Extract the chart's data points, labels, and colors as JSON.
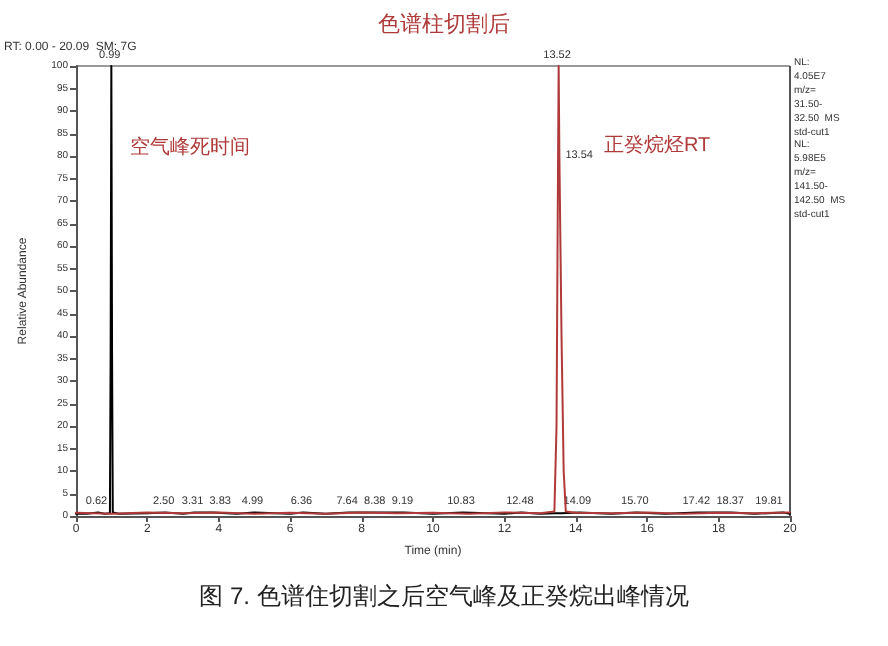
{
  "chart_data": {
    "type": "line",
    "title": "色谱柱切割后",
    "xlabel": "Time (min)",
    "ylabel": "Relative Abundance",
    "xlim": [
      0,
      20
    ],
    "xticks": [
      0,
      2,
      4,
      6,
      8,
      10,
      12,
      14,
      16,
      18,
      20
    ],
    "ylim": [
      0,
      100
    ],
    "yticks": [
      0,
      5,
      10,
      15,
      20,
      25,
      30,
      35,
      40,
      45,
      50,
      55,
      60,
      65,
      70,
      75,
      80,
      85,
      90,
      95,
      100
    ],
    "grid": false,
    "marker": "none",
    "line_style": "solid",
    "series": [
      {
        "color": "#000000",
        "x": [
          0,
          0.3,
          0.62,
          0.8,
          0.95,
          0.97,
          0.99,
          1.01,
          1.03,
          1.2,
          2,
          2.5,
          3,
          3.31,
          3.83,
          4.5,
          4.99,
          6,
          6.36,
          7,
          7.64,
          8.38,
          9.19,
          10,
          10.83,
          12,
          12.48,
          13,
          13.4,
          13.6,
          14.09,
          15,
          15.7,
          16.5,
          17.42,
          18.37,
          19,
          19.81,
          20
        ],
        "values": [
          0.5,
          0.5,
          0.8,
          0.5,
          0.6,
          36,
          100,
          36,
          0.8,
          0.5,
          0.6,
          0.8,
          0.5,
          0.8,
          0.8,
          0.5,
          0.8,
          0.5,
          0.8,
          0.5,
          0.8,
          0.8,
          0.8,
          0.5,
          0.8,
          0.5,
          0.8,
          0.5,
          0.6,
          0.6,
          0.8,
          0.5,
          0.8,
          0.5,
          0.8,
          0.8,
          0.5,
          0.8,
          0.5
        ]
      },
      {
        "color": "#b03a3a",
        "x": [
          0,
          1,
          2,
          3,
          4,
          5,
          6,
          7,
          8,
          9,
          10,
          11,
          12,
          13,
          13.4,
          13.46,
          13.5,
          13.52,
          13.54,
          13.57,
          13.6,
          13.66,
          13.72,
          14,
          15,
          16,
          17,
          18,
          19,
          20
        ],
        "values": [
          0.7,
          0.5,
          0.8,
          0.6,
          0.8,
          0.5,
          0.7,
          0.5,
          0.8,
          0.6,
          0.7,
          0.5,
          0.8,
          0.6,
          1,
          20,
          75,
          100,
          80,
          60,
          40,
          10,
          1,
          0.7,
          0.6,
          0.8,
          0.5,
          0.7,
          0.6,
          0.8
        ]
      }
    ],
    "annotations": [
      "RT: 0.00 - 20.09  SM: 7G",
      "空气峰死时间",
      "正癸烷烃RT",
      "NL:\n4.05E7\nm/z=\n31.50-\n32.50  MS\nstd-cut1",
      "NL:\n5.98E5\nm/z=\n141.50-\n142.50  MS\nstd-cut1",
      "图 7. 色谱住切割之后空气峰及正癸烷出峰情况",
      {
        "text": "0.99",
        "x": 0.99,
        "y": 100
      },
      {
        "text": "13.52",
        "x": 13.52,
        "y": 100
      },
      {
        "text": "13.54",
        "x": 13.54,
        "y": 80
      },
      {
        "text": "0.62",
        "x": 0.62,
        "y": 1
      },
      {
        "text": "2.50",
        "x": 2.5,
        "y": 1
      },
      {
        "text": "3.31",
        "x": 3.31,
        "y": 1
      },
      {
        "text": "3.83",
        "x": 3.83,
        "y": 1
      },
      {
        "text": "4.99",
        "x": 4.99,
        "y": 1
      },
      {
        "text": "6.36",
        "x": 6.36,
        "y": 1
      },
      {
        "text": "7.64",
        "x": 7.64,
        "y": 1
      },
      {
        "text": "8.38",
        "x": 8.38,
        "y": 1
      },
      {
        "text": "9.19",
        "x": 9.19,
        "y": 1
      },
      {
        "text": "10.83",
        "x": 10.83,
        "y": 1
      },
      {
        "text": "12.48",
        "x": 12.48,
        "y": 1
      },
      {
        "text": "14.09",
        "x": 14.09,
        "y": 1
      },
      {
        "text": "15.70",
        "x": 15.7,
        "y": 1
      },
      {
        "text": "17.42",
        "x": 17.42,
        "y": 1
      },
      {
        "text": "18.37",
        "x": 18.37,
        "y": 1
      },
      {
        "text": "19.81",
        "x": 19.81,
        "y": 1
      }
    ]
  }
}
